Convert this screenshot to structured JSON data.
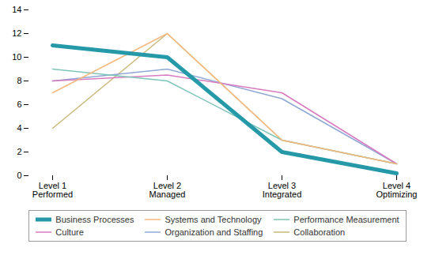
{
  "chart_data": {
    "type": "line",
    "categories": [
      "Level 1\nPerformed",
      "Level 2\nManaged",
      "Level 3\nIntegrated",
      "Level 4\nOptimizing"
    ],
    "series": [
      {
        "name": "Business Processes",
        "color": "#2699a8",
        "values": [
          11,
          10,
          2,
          0.2
        ]
      },
      {
        "name": "Systems and Technology",
        "color": "#f5b97f",
        "values": [
          7,
          12,
          3,
          1
        ]
      },
      {
        "name": "Performance Measurement",
        "color": "#7fc4b8",
        "values": [
          9,
          8,
          3,
          1
        ]
      },
      {
        "name": "Culture",
        "color": "#d87bbf",
        "values": [
          8,
          8.5,
          7,
          1
        ]
      },
      {
        "name": "Organization and Staffing",
        "color": "#8fa8d4",
        "values": [
          8,
          9,
          6.5,
          1
        ]
      },
      {
        "name": "Collaboration",
        "color": "#c8b87a",
        "values": [
          4,
          12,
          3,
          1
        ]
      }
    ],
    "ylim": [
      0,
      14
    ],
    "yticks": [
      0,
      2,
      4,
      6,
      8,
      10,
      12,
      14
    ],
    "grid": false,
    "legend": "bottom"
  }
}
